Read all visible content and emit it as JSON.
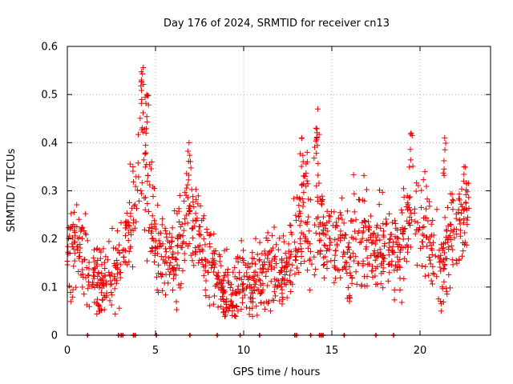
{
  "chart_data": {
    "type": "scatter",
    "title": "Day 176 of 2024, SRMTID for receiver cn13",
    "xlabel": "GPS time / hours",
    "ylabel": "SRMTID / TECUs",
    "xlim": [
      0,
      24
    ],
    "ylim": [
      0,
      0.6
    ],
    "x_ticks": [
      0,
      5,
      10,
      15,
      20
    ],
    "y_ticks": [
      0,
      0.1,
      0.2,
      0.3,
      0.4,
      0.5,
      0.6
    ],
    "x_tick_labels": [
      "0",
      "5",
      "10",
      "15",
      "20"
    ],
    "y_tick_labels": [
      "0",
      "0.1",
      "0.2",
      "0.3",
      "0.4",
      "0.5",
      "0.6"
    ],
    "grid": true,
    "marker": "+",
    "color": "#e60000",
    "series": [
      {
        "name": "SRMTID",
        "trend": [
          [
            0.0,
            0.17
          ],
          [
            0.5,
            0.19
          ],
          [
            1.0,
            0.17
          ],
          [
            1.3,
            0.11
          ],
          [
            1.6,
            0.12
          ],
          [
            2.0,
            0.1
          ],
          [
            2.5,
            0.13
          ],
          [
            3.0,
            0.14
          ],
          [
            3.3,
            0.19
          ],
          [
            3.7,
            0.24
          ],
          [
            4.0,
            0.3
          ],
          [
            4.3,
            0.38
          ],
          [
            4.6,
            0.3
          ],
          [
            5.0,
            0.18
          ],
          [
            5.3,
            0.16
          ],
          [
            5.8,
            0.15
          ],
          [
            6.3,
            0.18
          ],
          [
            6.8,
            0.24
          ],
          [
            7.0,
            0.26
          ],
          [
            7.4,
            0.2
          ],
          [
            7.8,
            0.17
          ],
          [
            8.2,
            0.15
          ],
          [
            8.6,
            0.11
          ],
          [
            9.0,
            0.09
          ],
          [
            9.5,
            0.09
          ],
          [
            10.0,
            0.12
          ],
          [
            10.5,
            0.11
          ],
          [
            11.0,
            0.13
          ],
          [
            11.5,
            0.14
          ],
          [
            12.0,
            0.13
          ],
          [
            12.5,
            0.15
          ],
          [
            13.0,
            0.2
          ],
          [
            13.4,
            0.25
          ],
          [
            13.8,
            0.2
          ],
          [
            14.2,
            0.24
          ],
          [
            14.6,
            0.2
          ],
          [
            15.0,
            0.18
          ],
          [
            15.5,
            0.19
          ],
          [
            16.0,
            0.18
          ],
          [
            16.5,
            0.22
          ],
          [
            17.0,
            0.2
          ],
          [
            17.5,
            0.18
          ],
          [
            18.0,
            0.17
          ],
          [
            18.5,
            0.16
          ],
          [
            19.0,
            0.2
          ],
          [
            19.5,
            0.26
          ],
          [
            20.0,
            0.22
          ],
          [
            20.5,
            0.2
          ],
          [
            21.0,
            0.17
          ],
          [
            21.4,
            0.16
          ],
          [
            21.8,
            0.22
          ],
          [
            22.3,
            0.25
          ],
          [
            22.8,
            0.23
          ]
        ],
        "peaks": [
          [
            4.3,
            0.556
          ],
          [
            4.2,
            0.53
          ],
          [
            4.5,
            0.5
          ],
          [
            6.9,
            0.4
          ],
          [
            13.3,
            0.41
          ],
          [
            13.6,
            0.38
          ],
          [
            14.2,
            0.47
          ],
          [
            14.1,
            0.43
          ],
          [
            19.5,
            0.42
          ],
          [
            21.4,
            0.41
          ],
          [
            22.5,
            0.35
          ]
        ],
        "troughs": [
          [
            0.2,
            0.07
          ],
          [
            1.8,
            0.05
          ],
          [
            9.0,
            0.05
          ],
          [
            9.5,
            0.04
          ],
          [
            16.0,
            0.07
          ],
          [
            21.2,
            0.05
          ]
        ],
        "spread": 0.045,
        "density_per_hour": 60
      }
    ],
    "zero_line_markers_x": [
      1.15,
      2.9,
      3.05,
      3.15,
      3.75,
      3.85,
      5.05,
      6.95,
      8.5,
      9.8,
      10.9,
      12.9,
      13.0,
      13.8,
      14.3,
      14.4,
      14.5,
      15.7,
      17.5,
      18.5
    ]
  }
}
